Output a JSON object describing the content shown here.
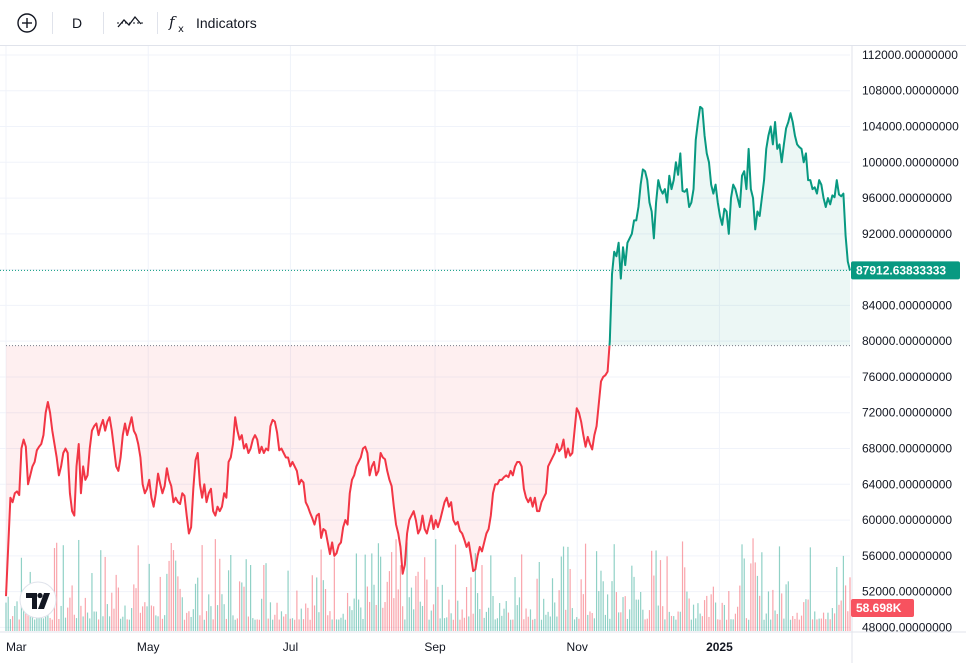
{
  "toolbar": {
    "interval_label": "D",
    "indicators_label": "Indicators",
    "icons": [
      "add-symbol-icon",
      "compare-icon",
      "indicators-fx-icon"
    ]
  },
  "colors": {
    "up": "#089981",
    "down": "#F23645",
    "up_fill": "rgba(8,153,129,0.08)",
    "down_fill": "rgba(242,54,69,0.08)",
    "grid": "#f0f3fa",
    "text": "#131722"
  },
  "price_tag": "87912.63833333",
  "volume_tag": "58.698K",
  "chart_data": {
    "type": "area",
    "subtype": "baseline",
    "baseline": 79500,
    "title": "",
    "ylim": [
      47600,
      113000
    ],
    "price_ticks": [
      "112000.00000000",
      "108000.00000000",
      "104000.00000000",
      "100000.00000000",
      "96000.00000000",
      "92000.00000000",
      "88000.00000000",
      "84000.00000000",
      "80000.00000000",
      "76000.00000000",
      "72000.00000000",
      "68000.00000000",
      "64000.00000000",
      "60000.00000000",
      "56000.00000000",
      "52000.00000000",
      "48000.00000000"
    ],
    "price_tick_values": [
      112000,
      108000,
      104000,
      100000,
      96000,
      92000,
      88000,
      84000,
      80000,
      76000,
      72000,
      68000,
      64000,
      60000,
      56000,
      52000,
      48000
    ],
    "time_labels": [
      {
        "text": "Mar",
        "bold": false
      },
      {
        "text": "May",
        "bold": false
      },
      {
        "text": "Jul",
        "bold": false
      },
      {
        "text": "Sep",
        "bold": false
      },
      {
        "text": "Nov",
        "bold": false
      },
      {
        "text": "2025",
        "bold": true
      }
    ],
    "last_price": 87912.63833333,
    "last_volume": "58.698K",
    "series": [
      {
        "x_start": "2024-03-01",
        "x_end": "2025-02-26",
        "values": [
          51500,
          57000,
          62500,
          62000,
          63000,
          63200,
          62800,
          68000,
          69000,
          68200,
          64000,
          65000,
          66000,
          66500,
          67800,
          68200,
          68500,
          69500,
          72000,
          73200,
          72000,
          70000,
          68500,
          67000,
          65000,
          66000,
          67500,
          68000,
          67500,
          63000,
          61000,
          60500,
          66000,
          68500,
          63000,
          66000,
          64500,
          65000,
          68000,
          70000,
          70500,
          70800,
          69500,
          70500,
          71200,
          70000,
          71000,
          71500,
          70000,
          68000,
          66000,
          65500,
          67000,
          69500,
          70800,
          69500,
          70500,
          71500,
          70000,
          69500,
          68500,
          67000,
          64000,
          63000,
          63500,
          64500,
          62500,
          61500,
          63000,
          65200,
          64000,
          63000,
          63800,
          65800,
          64500,
          63800,
          62000,
          62500,
          62000,
          61800,
          63000,
          62700,
          60500,
          58500,
          59200,
          63500,
          66700,
          67500,
          64000,
          62500,
          64000,
          62000,
          63000,
          63500,
          61000,
          60500,
          61500,
          61000,
          61500,
          63000,
          62500,
          66500,
          67000,
          68500,
          71500,
          70000,
          69000,
          69500,
          68000,
          68500,
          67500,
          68000,
          69000,
          69500,
          69000,
          67500,
          68200,
          67500,
          68000,
          67800,
          70500,
          71200,
          71000,
          69800,
          67800,
          68000,
          67500,
          67000,
          67000,
          66000,
          66500,
          66000,
          65500,
          64000,
          64500,
          64200,
          62000,
          61500,
          60800,
          60200,
          59500,
          60500,
          60700,
          58000,
          59000,
          58800,
          57500,
          56200,
          57500,
          56000,
          56300,
          57200,
          57500,
          59200,
          60000,
          59500,
          63000,
          64500,
          65000,
          66000,
          66500,
          67000,
          68000,
          68200,
          67500,
          65000,
          66000,
          66500,
          65000,
          65500,
          67500,
          67000,
          66800,
          65500,
          64500,
          63800,
          61500,
          59500,
          58500,
          57000,
          54000,
          55000,
          58500,
          60000,
          60500,
          61000,
          60000,
          58500,
          59000,
          60500,
          59000,
          58500,
          59500,
          60500,
          59000,
          60000,
          59200,
          60000,
          61000,
          62000,
          62500,
          61500,
          62000,
          60000,
          59500,
          59800,
          58800,
          58500,
          57800,
          57000,
          57500,
          56000,
          54300,
          54500,
          56000,
          57000,
          56500,
          57500,
          58500,
          59000,
          60500,
          63000,
          64000,
          64000,
          64500,
          64500,
          64800,
          65000,
          64800,
          65500,
          65000,
          66000,
          66500,
          66500,
          66000,
          63500,
          62500,
          62000,
          62500,
          61500,
          62500,
          61000,
          61000,
          62000,
          62500,
          63000,
          66000,
          66500,
          67000,
          67500,
          68500,
          67700,
          68000,
          69000,
          67000,
          68000,
          67200,
          67500,
          70000,
          72500,
          72000,
          71000,
          69500,
          68200,
          69300,
          68500,
          67900,
          69500,
          70500,
          73000,
          75500,
          76000,
          76200,
          76600,
          80000,
          87500,
          90000,
          89500,
          91000,
          87000,
          90500,
          88500,
          91000,
          91500,
          92000,
          93500,
          93500,
          95000,
          97500,
          99200,
          99000,
          98000,
          95500,
          94500,
          91500,
          95500,
          98000,
          97000,
          96500,
          97000,
          95500,
          98500,
          97000,
          98000,
          100000,
          98600,
          101000,
          96800,
          96700,
          97000,
          95000,
          95500,
          97000,
          102500,
          104500,
          106200,
          106000,
          103000,
          101000,
          100000,
          97500,
          96500,
          97500,
          95500,
          94000,
          93000,
          94800,
          94500,
          92000,
          96000,
          97500,
          97000,
          96000,
          95000,
          98500,
          99000,
          97000,
          101500,
          97000,
          96000,
          92500,
          94500,
          94000,
          96000,
          98000,
          101500,
          103000,
          104000,
          102000,
          104500,
          101500,
          102000,
          100000,
          102000,
          103800,
          104500,
          105500,
          104500,
          103000,
          102000,
          101700,
          101500,
          100000,
          101000,
          98000,
          98000,
          97000,
          97200,
          96500,
          98000,
          97500,
          96000,
          95000,
          96000,
          95300,
          96300,
          96100,
          98000,
          96400,
          96200,
          96500,
          91800,
          88900,
          87900
        ]
      }
    ],
    "volume": {
      "note": "volume histogram bars at chart bottom, colored by day direction",
      "max_bar_frac": 0.16
    }
  }
}
